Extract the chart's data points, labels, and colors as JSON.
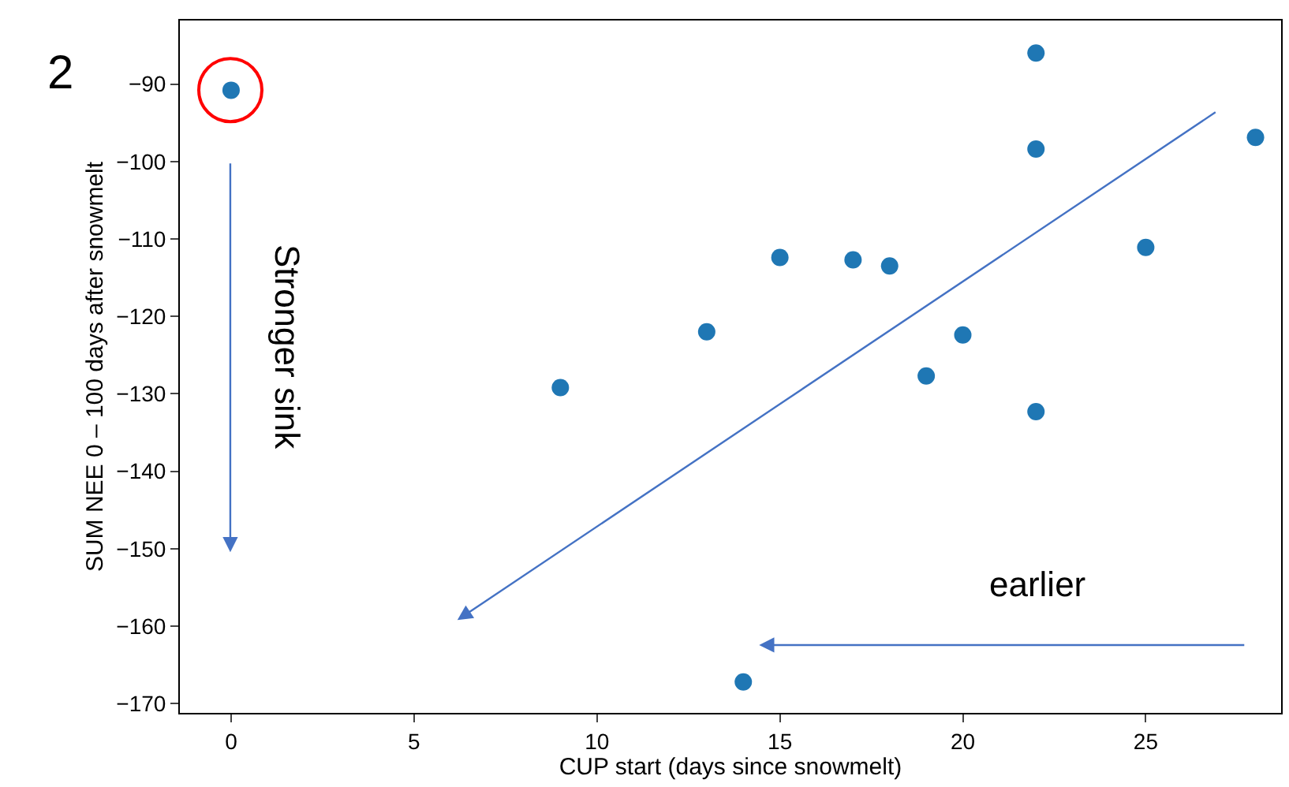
{
  "chart_data": {
    "type": "scatter",
    "xlabel": "CUP start (days since snowmelt)",
    "ylabel": "SUM NEE 0 – 100 days after snowmelt",
    "x": [
      0,
      9,
      13,
      14,
      15,
      17,
      18,
      19,
      20,
      22,
      22,
      22,
      25,
      28
    ],
    "series": [
      {
        "color": "#1f77b4",
        "values": [
          -90.8,
          -129.2,
          -122.0,
          -167.2,
          -112.4,
          -112.7,
          -113.5,
          -127.7,
          -122.4,
          -86.0,
          -98.4,
          -132.3,
          -111.1,
          -96.9
        ]
      }
    ],
    "xlim": [
      -1.4,
      28.7
    ],
    "ylim": [
      -171.2,
      -81.8
    ],
    "xticks": [
      0,
      5,
      10,
      15,
      20,
      25
    ],
    "yticks": [
      {
        "value": -90,
        "label": "−90"
      },
      {
        "value": -100,
        "label": "−100"
      },
      {
        "value": -110,
        "label": "−110"
      },
      {
        "value": -120,
        "label": "−120"
      },
      {
        "value": -130,
        "label": "−130"
      },
      {
        "value": -140,
        "label": "−140"
      },
      {
        "value": -150,
        "label": "−150"
      },
      {
        "value": -160,
        "label": "−160"
      },
      {
        "value": -170,
        "label": "−170"
      }
    ],
    "annotations": [
      "2",
      "Stronger sink",
      "earlier"
    ],
    "marker": "circle"
  }
}
